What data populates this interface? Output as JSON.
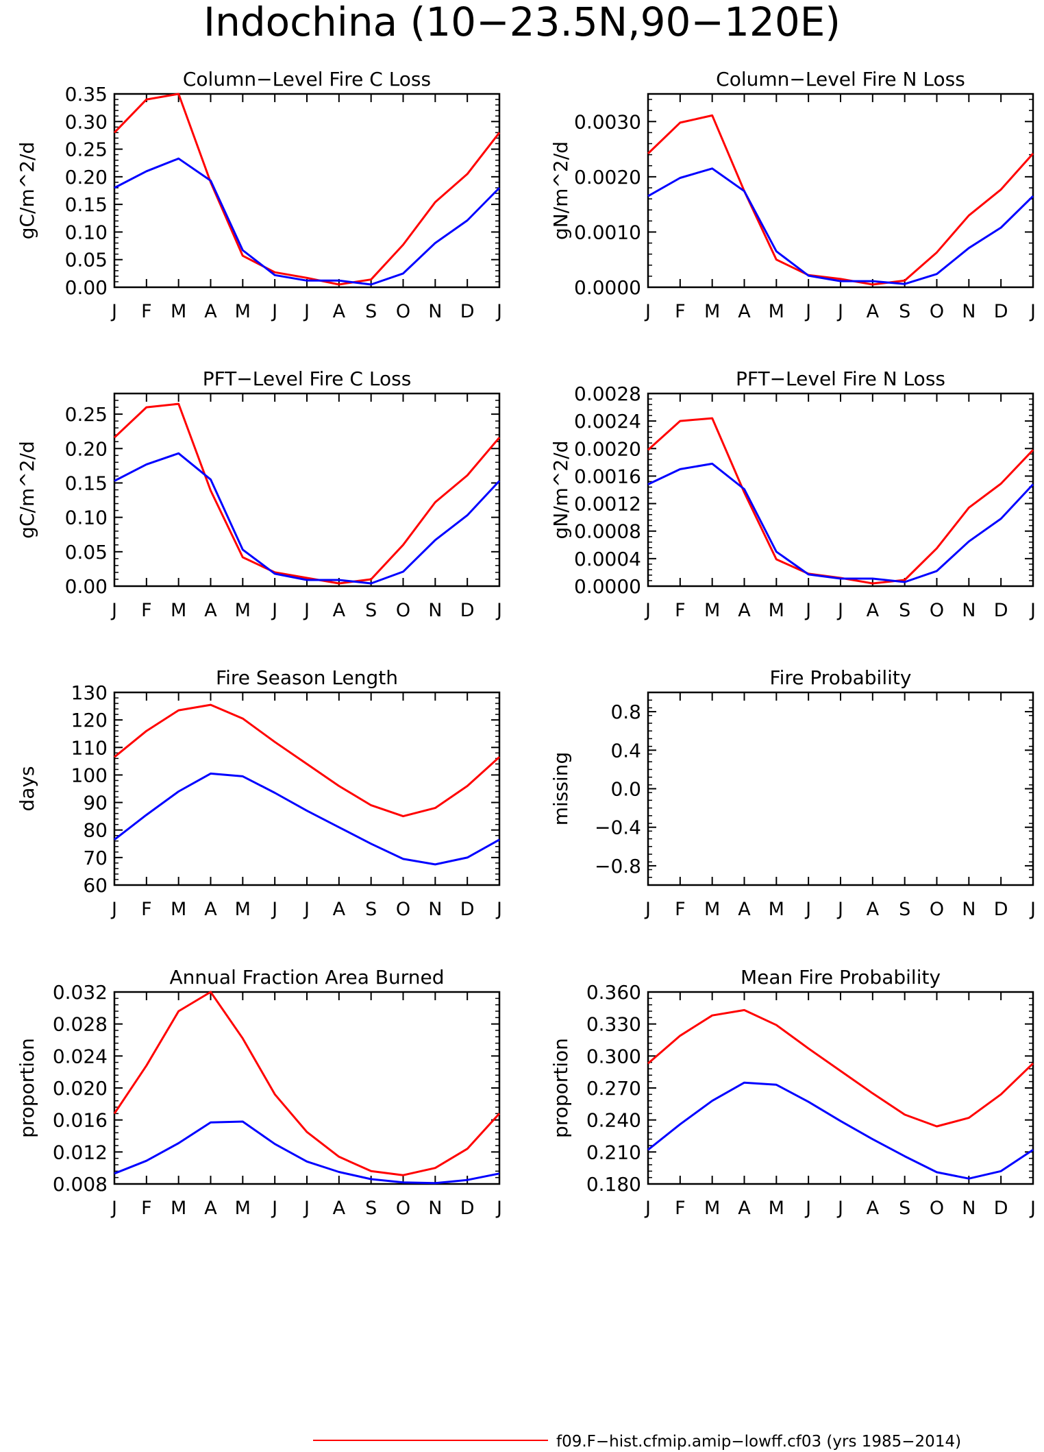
{
  "page": {
    "title": "Indochina (10−23.5N,90−120E)",
    "legend": {
      "label": "f09.F−hist.cfmip.amip−lowff.cf03 (yrs 1985−2014)",
      "color": "#ff0000"
    }
  },
  "chart_data": [
    {
      "id": "col-c",
      "type": "line",
      "title": "Column−Level Fire C Loss",
      "ylabel": "gC/m^2/d",
      "xlabel": "",
      "categories": [
        "J",
        "F",
        "M",
        "A",
        "M",
        "J",
        "J",
        "A",
        "S",
        "O",
        "N",
        "D",
        "J"
      ],
      "ylim": [
        0,
        0.35
      ],
      "yticks": [
        "0.00",
        "0.05",
        "0.10",
        "0.15",
        "0.20",
        "0.25",
        "0.30",
        "0.35"
      ],
      "grid": false,
      "series": [
        {
          "color": "#ff0000",
          "values": [
            0.28,
            0.34,
            0.35,
            0.19,
            0.057,
            0.027,
            0.017,
            0.005,
            0.014,
            0.077,
            0.154,
            0.205,
            0.28
          ]
        },
        {
          "color": "#0000ff",
          "values": [
            0.18,
            0.21,
            0.233,
            0.193,
            0.067,
            0.022,
            0.012,
            0.012,
            0.005,
            0.025,
            0.08,
            0.121,
            0.18
          ]
        }
      ]
    },
    {
      "id": "col-n",
      "type": "line",
      "title": "Column−Level Fire N Loss",
      "ylabel": "gN/m^2/d",
      "xlabel": "",
      "categories": [
        "J",
        "F",
        "M",
        "A",
        "M",
        "J",
        "J",
        "A",
        "S",
        "O",
        "N",
        "D",
        "J"
      ],
      "ylim": [
        0,
        0.0035
      ],
      "yticks": [
        "0.0000",
        "0.0010",
        "0.0020",
        "0.0030"
      ],
      "ytickvals": [
        0,
        0.001,
        0.002,
        0.003
      ],
      "grid": false,
      "series": [
        {
          "color": "#ff0000",
          "values": [
            0.00242,
            0.00298,
            0.00311,
            0.00174,
            0.0005,
            0.00022,
            0.00015,
            5e-05,
            0.00012,
            0.00063,
            0.0013,
            0.00177,
            0.00242
          ]
        },
        {
          "color": "#0000ff",
          "values": [
            0.00165,
            0.00198,
            0.00215,
            0.00174,
            0.00065,
            0.00021,
            0.00011,
            0.00011,
            6e-05,
            0.00024,
            0.00071,
            0.00108,
            0.00165
          ]
        }
      ]
    },
    {
      "id": "pft-c",
      "type": "line",
      "title": "PFT−Level Fire C Loss",
      "ylabel": "gC/m^2/d",
      "xlabel": "",
      "categories": [
        "J",
        "F",
        "M",
        "A",
        "M",
        "J",
        "J",
        "A",
        "S",
        "O",
        "N",
        "D",
        "J"
      ],
      "ylim": [
        0,
        0.28
      ],
      "yticks": [
        "0.00",
        "0.05",
        "0.10",
        "0.15",
        "0.20",
        "0.25"
      ],
      "ytickvals": [
        0,
        0.05,
        0.1,
        0.15,
        0.2,
        0.25
      ],
      "grid": false,
      "series": [
        {
          "color": "#ff0000",
          "values": [
            0.216,
            0.26,
            0.265,
            0.139,
            0.042,
            0.02,
            0.012,
            0.004,
            0.01,
            0.06,
            0.122,
            0.161,
            0.216
          ]
        },
        {
          "color": "#0000ff",
          "values": [
            0.153,
            0.177,
            0.193,
            0.155,
            0.053,
            0.018,
            0.009,
            0.009,
            0.004,
            0.021,
            0.067,
            0.103,
            0.153
          ]
        }
      ]
    },
    {
      "id": "pft-n",
      "type": "line",
      "title": "PFT−Level Fire N Loss",
      "ylabel": "gN/m^2/d",
      "xlabel": "",
      "categories": [
        "J",
        "F",
        "M",
        "A",
        "M",
        "J",
        "J",
        "A",
        "S",
        "O",
        "N",
        "D",
        "J"
      ],
      "ylim": [
        0,
        0.0028
      ],
      "yticks": [
        "0.0000",
        "0.0004",
        "0.0008",
        "0.0012",
        "0.0016",
        "0.0020",
        "0.0024",
        "0.0028"
      ],
      "ytickvals": [
        0,
        0.0004,
        0.0008,
        0.0012,
        0.0016,
        0.002,
        0.0024,
        0.0028
      ],
      "grid": false,
      "series": [
        {
          "color": "#ff0000",
          "values": [
            0.00198,
            0.0024,
            0.00244,
            0.00136,
            0.00039,
            0.00018,
            0.00012,
            4e-05,
            9e-05,
            0.00055,
            0.00114,
            0.00149,
            0.00198
          ]
        },
        {
          "color": "#0000ff",
          "values": [
            0.00148,
            0.0017,
            0.00178,
            0.00141,
            0.0005,
            0.00017,
            0.00011,
            0.00011,
            6e-05,
            0.00022,
            0.00065,
            0.00098,
            0.00148
          ]
        }
      ]
    },
    {
      "id": "season",
      "type": "line",
      "title": "Fire Season Length",
      "ylabel": "days",
      "xlabel": "",
      "categories": [
        "J",
        "F",
        "M",
        "A",
        "M",
        "J",
        "J",
        "A",
        "S",
        "O",
        "N",
        "D",
        "J"
      ],
      "ylim": [
        60,
        130
      ],
      "yticks": [
        "60",
        "70",
        "80",
        "90",
        "100",
        "110",
        "120",
        "130"
      ],
      "ytickvals": [
        60,
        70,
        80,
        90,
        100,
        110,
        120,
        130
      ],
      "grid": false,
      "series": [
        {
          "color": "#ff0000",
          "values": [
            106.5,
            116,
            123.5,
            125.5,
            120.5,
            112,
            104,
            96,
            89,
            85,
            88,
            96,
            106.5
          ]
        },
        {
          "color": "#0000ff",
          "values": [
            76.5,
            85.5,
            94,
            100.5,
            99.5,
            93.5,
            87,
            81,
            75,
            69.5,
            67.5,
            70,
            76.5
          ]
        }
      ]
    },
    {
      "id": "prob",
      "type": "line",
      "title": "Fire Probability",
      "ylabel": "missing",
      "xlabel": "",
      "categories": [
        "J",
        "F",
        "M",
        "A",
        "M",
        "J",
        "J",
        "A",
        "S",
        "O",
        "N",
        "D",
        "J"
      ],
      "ylim": [
        -1,
        1
      ],
      "yticks": [
        "−0.8",
        "−0.4",
        "0.0",
        "0.4",
        "0.8"
      ],
      "ytickvals": [
        -0.8,
        -0.4,
        0.0,
        0.4,
        0.8
      ],
      "grid": false,
      "series": []
    },
    {
      "id": "area",
      "type": "line",
      "title": "Annual Fraction Area Burned",
      "ylabel": "proportion",
      "xlabel": "",
      "categories": [
        "J",
        "F",
        "M",
        "A",
        "M",
        "J",
        "J",
        "A",
        "S",
        "O",
        "N",
        "D",
        "J"
      ],
      "ylim": [
        0.008,
        0.032
      ],
      "yticks": [
        "0.008",
        "0.012",
        "0.016",
        "0.020",
        "0.024",
        "0.028",
        "0.032"
      ],
      "ytickvals": [
        0.008,
        0.012,
        0.016,
        0.02,
        0.024,
        0.028,
        0.032
      ],
      "grid": false,
      "series": [
        {
          "color": "#ff0000",
          "values": [
            0.0168,
            0.0228,
            0.0296,
            0.032,
            0.0262,
            0.0192,
            0.0145,
            0.0114,
            0.0096,
            0.0091,
            0.01,
            0.0124,
            0.0168
          ]
        },
        {
          "color": "#0000ff",
          "values": [
            0.0093,
            0.0109,
            0.0131,
            0.0157,
            0.0158,
            0.013,
            0.0108,
            0.0095,
            0.0086,
            0.0082,
            0.0081,
            0.0085,
            0.0093
          ]
        }
      ]
    },
    {
      "id": "meanprob",
      "type": "line",
      "title": "Mean Fire Probability",
      "ylabel": "proportion",
      "xlabel": "",
      "categories": [
        "J",
        "F",
        "M",
        "A",
        "M",
        "J",
        "J",
        "A",
        "S",
        "O",
        "N",
        "D",
        "J"
      ],
      "ylim": [
        0.18,
        0.36
      ],
      "yticks": [
        "0.180",
        "0.210",
        "0.240",
        "0.270",
        "0.300",
        "0.330",
        "0.360"
      ],
      "ytickvals": [
        0.18,
        0.21,
        0.24,
        0.27,
        0.3,
        0.33,
        0.36
      ],
      "grid": false,
      "series": [
        {
          "color": "#ff0000",
          "values": [
            0.293,
            0.319,
            0.338,
            0.343,
            0.329,
            0.307,
            0.286,
            0.265,
            0.245,
            0.234,
            0.242,
            0.264,
            0.293
          ]
        },
        {
          "color": "#0000ff",
          "values": [
            0.212,
            0.236,
            0.258,
            0.275,
            0.273,
            0.257,
            0.239,
            0.222,
            0.206,
            0.191,
            0.185,
            0.192,
            0.212
          ]
        }
      ]
    }
  ]
}
